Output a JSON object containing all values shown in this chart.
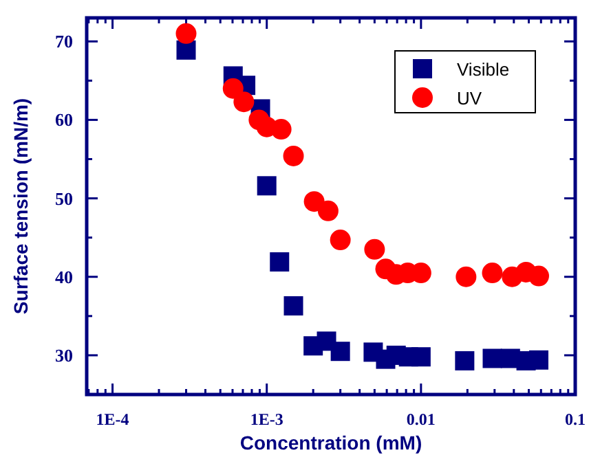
{
  "chart_data": {
    "type": "scatter",
    "xlabel": "Concentration (mM)",
    "ylabel": "Surface tension (mN/m)",
    "log": "x",
    "xlim": [
      6.8e-05,
      0.1
    ],
    "ylim": [
      25,
      73
    ],
    "xticks": [
      {
        "value": 7e-05,
        "label": null
      },
      {
        "value": 8e-05,
        "label": null
      },
      {
        "value": 9e-05,
        "label": null
      },
      {
        "value": 0.0001,
        "label": "1E-4"
      },
      {
        "value": 0.0002,
        "label": null
      },
      {
        "value": 0.0003,
        "label": null
      },
      {
        "value": 0.0004,
        "label": null
      },
      {
        "value": 0.0005,
        "label": null
      },
      {
        "value": 0.0006,
        "label": null
      },
      {
        "value": 0.0007,
        "label": null
      },
      {
        "value": 0.0008,
        "label": null
      },
      {
        "value": 0.0009,
        "label": null
      },
      {
        "value": 0.001,
        "label": "1E-3"
      },
      {
        "value": 0.002,
        "label": null
      },
      {
        "value": 0.003,
        "label": null
      },
      {
        "value": 0.004,
        "label": null
      },
      {
        "value": 0.005,
        "label": null
      },
      {
        "value": 0.006,
        "label": null
      },
      {
        "value": 0.007,
        "label": null
      },
      {
        "value": 0.008,
        "label": null
      },
      {
        "value": 0.009,
        "label": null
      },
      {
        "value": 0.01,
        "label": "0.01"
      },
      {
        "value": 0.02,
        "label": null
      },
      {
        "value": 0.03,
        "label": null
      },
      {
        "value": 0.04,
        "label": null
      },
      {
        "value": 0.05,
        "label": null
      },
      {
        "value": 0.06,
        "label": null
      },
      {
        "value": 0.07,
        "label": null
      },
      {
        "value": 0.08,
        "label": null
      },
      {
        "value": 0.09,
        "label": null
      },
      {
        "value": 0.1,
        "label": "0.1"
      }
    ],
    "yticks": [
      30,
      {
        "value": 35,
        "label": null
      },
      40,
      {
        "value": 45,
        "label": null
      },
      50,
      {
        "value": 55,
        "label": null
      },
      60,
      {
        "value": 65,
        "label": null
      },
      70
    ],
    "grid": false,
    "legend": "top right",
    "series": [
      {
        "name": "Visible",
        "color": "#000080",
        "marker": "square",
        "x": [
          0.0003,
          0.000605,
          0.00073,
          0.00091,
          0.001,
          0.00121,
          0.00149,
          0.002,
          0.00244,
          0.003,
          0.0049,
          0.0059,
          0.0069,
          0.0083,
          0.01,
          0.0192,
          0.029,
          0.038,
          0.048,
          0.058
        ],
        "values": [
          68.9,
          65.6,
          64.4,
          61.4,
          51.6,
          41.9,
          36.3,
          31.2,
          31.8,
          30.5,
          30.4,
          29.5,
          30.0,
          29.8,
          29.8,
          29.3,
          29.6,
          29.6,
          29.3,
          29.4
        ]
      },
      {
        "name": "UV",
        "color": "#ff0000",
        "marker": "circle",
        "x": [
          0.0003,
          0.000605,
          0.00071,
          0.00089,
          0.001,
          0.00124,
          0.00149,
          0.00203,
          0.0025,
          0.003,
          0.005,
          0.0059,
          0.0069,
          0.0082,
          0.01,
          0.0196,
          0.029,
          0.039,
          0.048,
          0.058
        ],
        "values": [
          71.0,
          64.0,
          62.3,
          60.0,
          59.1,
          58.8,
          55.4,
          49.6,
          48.4,
          44.7,
          43.5,
          41.0,
          40.3,
          40.5,
          40.5,
          40.0,
          40.5,
          40.0,
          40.6,
          40.1
        ]
      }
    ]
  }
}
